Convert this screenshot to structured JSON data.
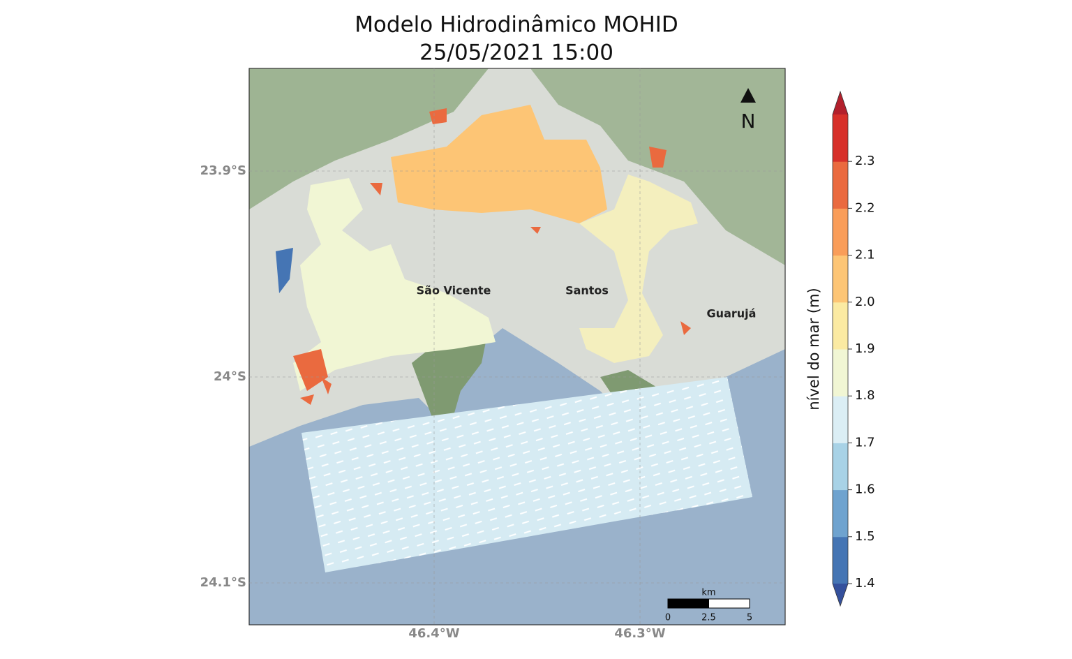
{
  "title": [
    "Modelo Hidrodinâmico MOHID",
    "25/05/2021 15:00"
  ],
  "map": {
    "lat_ticks": [
      {
        "value": -23.9,
        "label": "23.9°S"
      },
      {
        "value": -24.0,
        "label": "24°S"
      },
      {
        "value": -24.1,
        "label": "24.1°S"
      }
    ],
    "lon_ticks": [
      {
        "value": -46.4,
        "label": "46.4°W"
      },
      {
        "value": -46.3,
        "label": "46.3°W"
      }
    ],
    "places": [
      "São Vicente",
      "Santos",
      "Guarujá"
    ],
    "north": "N",
    "scale_bar": {
      "unit": "km",
      "ticks": [
        0,
        2.5,
        5
      ]
    }
  },
  "colorbar": {
    "label": "nível do mar (m)",
    "clim": [
      1.4,
      2.4
    ],
    "colors": [
      "#4575b4",
      "#6fa3cf",
      "#a8d2e6",
      "#dbeef5",
      "#f1f6d4",
      "#fbeaa2",
      "#fdc575",
      "#f99d59",
      "#ea6a3f",
      "#d7302a"
    ],
    "under_color": "#34509c",
    "over_color": "#b3202c",
    "ticks": [
      1.4,
      1.5,
      1.6,
      1.7,
      1.8,
      1.9,
      {
        "value": 2.0,
        "label": "2.0"
      },
      2.1,
      2.2,
      2.3
    ]
  }
}
